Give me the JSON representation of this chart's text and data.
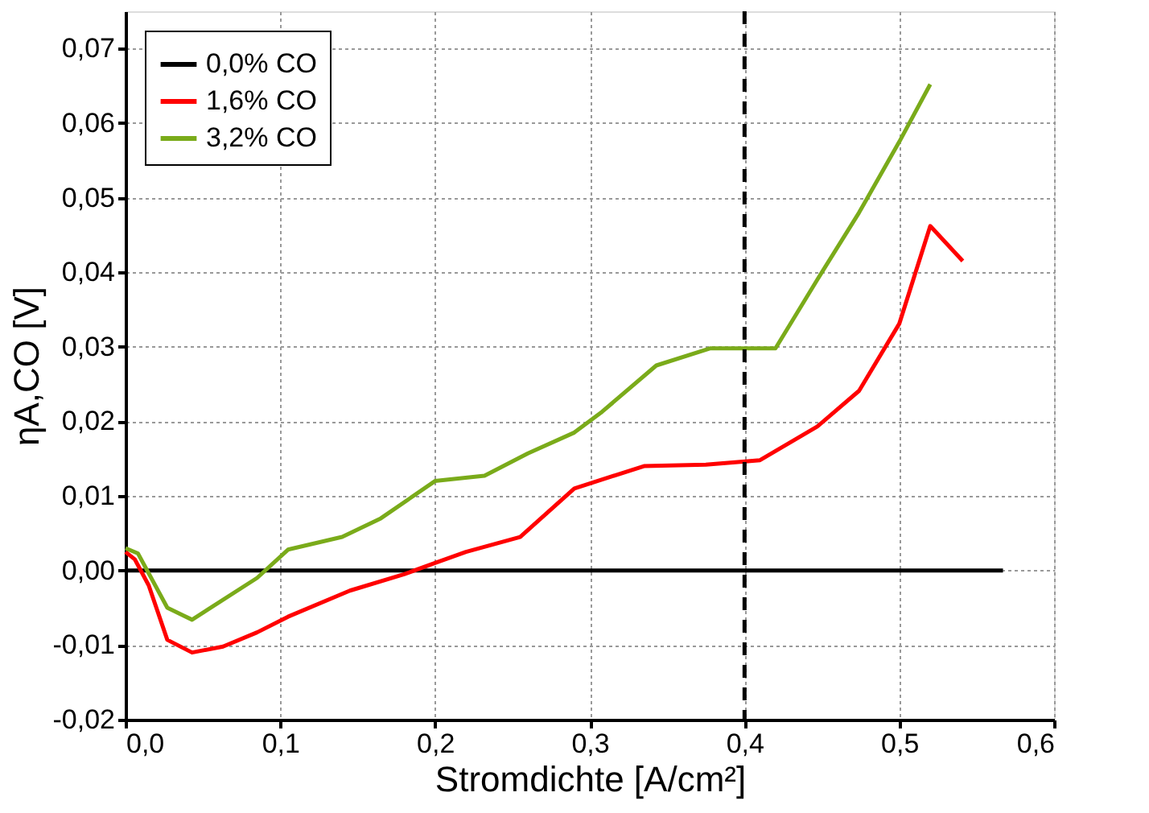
{
  "chart_data": {
    "type": "line",
    "xlabel": "Stromdichte [A/cm²]",
    "ylabel": "ηA,CO [V]",
    "xlim": [
      0,
      0.6
    ],
    "ylim": [
      -0.02,
      0.075
    ],
    "xticks": [
      {
        "value": 0,
        "label": "0,0"
      },
      {
        "value": 0.1,
        "label": "0,1"
      },
      {
        "value": 0.2,
        "label": "0,2"
      },
      {
        "value": 0.3,
        "label": "0,3"
      },
      {
        "value": 0.4,
        "label": "0,4"
      },
      {
        "value": 0.5,
        "label": "0,5"
      },
      {
        "value": 0.6,
        "label": "0,6"
      }
    ],
    "yticks": [
      {
        "value": -0.02,
        "label": "-0,02"
      },
      {
        "value": -0.01,
        "label": "-0,01"
      },
      {
        "value": 0,
        "label": "0,00"
      },
      {
        "value": 0.01,
        "label": "0,01"
      },
      {
        "value": 0.02,
        "label": "0,02"
      },
      {
        "value": 0.03,
        "label": "0,03"
      },
      {
        "value": 0.04,
        "label": "0,04"
      },
      {
        "value": 0.05,
        "label": "0,05"
      },
      {
        "value": 0.06,
        "label": "0,06"
      },
      {
        "value": 0.07,
        "label": "0,07"
      }
    ],
    "grid": true,
    "legend": "top left",
    "marker": "none",
    "line_style": "solid",
    "series": [
      {
        "name": "0,0% CO",
        "color": "#000000",
        "x": [
          0,
          0.567
        ],
        "values": [
          0,
          0
        ]
      },
      {
        "name": "1,6% CO",
        "color": "#ff0000",
        "x": [
          0,
          0.006,
          0.015,
          0.027,
          0.043,
          0.063,
          0.085,
          0.105,
          0.145,
          0.18,
          0.2,
          0.22,
          0.255,
          0.29,
          0.335,
          0.375,
          0.41,
          0.447,
          0.474,
          0.5,
          0.52,
          0.541
        ],
        "values": [
          0.0025,
          0.0015,
          -0.002,
          -0.0093,
          -0.011,
          -0.0102,
          -0.0083,
          -0.0062,
          -0.0027,
          -0.0005,
          0.001,
          0.0025,
          0.0045,
          0.011,
          0.014,
          0.0142,
          0.0148,
          0.0193,
          0.0241,
          0.0331,
          0.0462,
          0.0415
        ]
      },
      {
        "name": "3,2% CO",
        "color": "#7aab1a",
        "x": [
          0,
          0.008,
          0.027,
          0.043,
          0.085,
          0.105,
          0.14,
          0.165,
          0.2,
          0.232,
          0.26,
          0.29,
          0.308,
          0.343,
          0.378,
          0.42,
          0.447,
          0.474,
          0.5,
          0.52
        ],
        "values": [
          0.003,
          0.0023,
          -0.005,
          -0.0066,
          -0.001,
          0.0028,
          0.0045,
          0.007,
          0.012,
          0.0127,
          0.0157,
          0.0185,
          0.0213,
          0.0275,
          0.0298,
          0.0298,
          0.039,
          0.048,
          0.0575,
          0.0652
        ]
      }
    ],
    "ref_lines": [
      {
        "axis": "x",
        "value": 0.4,
        "color": "#000000",
        "line_style": "dashed"
      }
    ]
  }
}
